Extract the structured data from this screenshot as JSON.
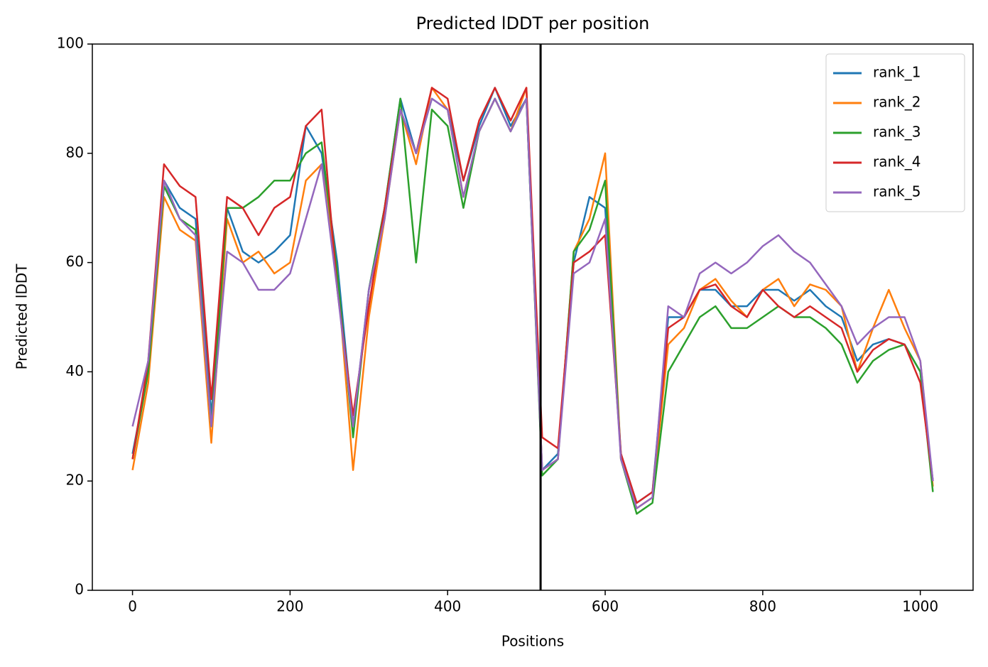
{
  "chart_data": {
    "type": "line",
    "title": "Predicted lDDT per position",
    "xlabel": "Positions",
    "ylabel": "Predicted lDDT",
    "x": [
      0,
      20,
      40,
      60,
      80,
      100,
      120,
      140,
      160,
      180,
      200,
      220,
      240,
      260,
      280,
      300,
      320,
      340,
      360,
      380,
      400,
      420,
      440,
      460,
      480,
      500,
      520,
      540,
      560,
      580,
      600,
      620,
      640,
      660,
      680,
      700,
      720,
      740,
      760,
      780,
      800,
      820,
      840,
      860,
      880,
      900,
      920,
      940,
      960,
      980,
      1000,
      1016
    ],
    "series": [
      {
        "name": "rank_1",
        "color": "#1f77b4",
        "values": [
          25,
          40,
          75,
          70,
          68,
          32,
          70,
          62,
          60,
          62,
          65,
          85,
          80,
          60,
          30,
          55,
          70,
          90,
          80,
          90,
          88,
          75,
          85,
          92,
          85,
          90,
          22,
          25,
          60,
          72,
          70,
          25,
          16,
          18,
          50,
          50,
          55,
          55,
          52,
          52,
          55,
          55,
          53,
          55,
          52,
          50,
          42,
          45,
          46,
          45,
          40,
          20
        ]
      },
      {
        "name": "rank_2",
        "color": "#ff7f0e",
        "values": [
          22,
          38,
          72,
          66,
          64,
          27,
          68,
          60,
          62,
          58,
          60,
          75,
          78,
          58,
          22,
          50,
          68,
          88,
          78,
          92,
          88,
          72,
          84,
          90,
          84,
          92,
          22,
          24,
          62,
          68,
          80,
          24,
          15,
          17,
          45,
          48,
          55,
          57,
          53,
          50,
          55,
          57,
          52,
          56,
          55,
          52,
          40,
          48,
          55,
          48,
          42,
          19
        ]
      },
      {
        "name": "rank_3",
        "color": "#2ca02c",
        "values": [
          24,
          40,
          74,
          68,
          66,
          30,
          70,
          70,
          72,
          75,
          75,
          80,
          82,
          58,
          28,
          55,
          70,
          90,
          60,
          88,
          85,
          70,
          84,
          90,
          84,
          90,
          21,
          24,
          62,
          66,
          75,
          24,
          14,
          16,
          40,
          45,
          50,
          52,
          48,
          48,
          50,
          52,
          50,
          50,
          48,
          45,
          38,
          42,
          44,
          45,
          40,
          18
        ]
      },
      {
        "name": "rank_4",
        "color": "#d62728",
        "values": [
          24,
          42,
          78,
          74,
          72,
          35,
          72,
          70,
          65,
          70,
          72,
          85,
          88,
          55,
          32,
          52,
          70,
          88,
          80,
          92,
          90,
          75,
          86,
          92,
          86,
          92,
          28,
          26,
          60,
          62,
          65,
          25,
          16,
          18,
          48,
          50,
          55,
          56,
          52,
          50,
          55,
          52,
          50,
          52,
          50,
          48,
          40,
          44,
          46,
          45,
          38,
          20
        ]
      },
      {
        "name": "rank_5",
        "color": "#9467bd",
        "values": [
          30,
          42,
          75,
          68,
          65,
          30,
          62,
          60,
          55,
          55,
          58,
          68,
          78,
          55,
          30,
          55,
          68,
          88,
          80,
          90,
          88,
          72,
          84,
          90,
          84,
          90,
          22,
          24,
          58,
          60,
          68,
          24,
          15,
          17,
          52,
          50,
          58,
          60,
          58,
          60,
          63,
          65,
          62,
          60,
          56,
          52,
          45,
          48,
          50,
          50,
          42,
          20
        ]
      }
    ],
    "vlines": [
      518
    ],
    "xlim": [
      -51,
      1067
    ],
    "ylim": [
      0,
      100
    ],
    "xticks": [
      0,
      200,
      400,
      600,
      800,
      1000
    ],
    "yticks": [
      0,
      20,
      40,
      60,
      80,
      100
    ],
    "grid": false,
    "legend": "upper right"
  }
}
